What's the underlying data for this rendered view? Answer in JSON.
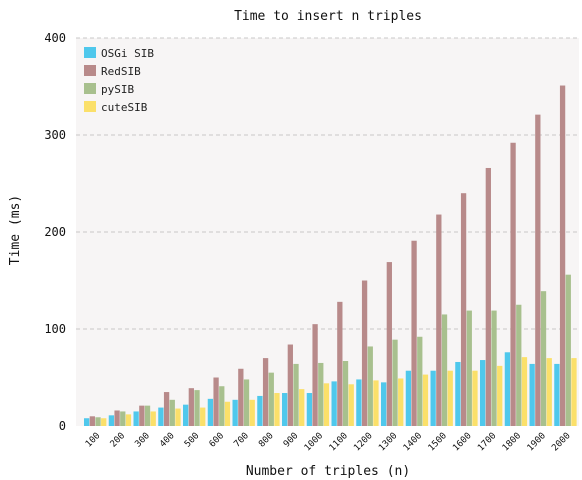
{
  "chart_data": {
    "type": "bar",
    "title": "Time to insert n triples",
    "xlabel": "Number of triples (n)",
    "ylabel": "Time (ms)",
    "ylim": [
      0,
      400
    ],
    "yticks": [
      0,
      100,
      200,
      300,
      400
    ],
    "grid": true,
    "legend_position": "top-left",
    "categories": [
      "100",
      "200",
      "300",
      "400",
      "500",
      "600",
      "700",
      "800",
      "900",
      "1000",
      "1100",
      "1200",
      "1300",
      "1400",
      "1500",
      "1600",
      "1700",
      "1800",
      "1900",
      "2000"
    ],
    "series": [
      {
        "name": "OSGi SIB",
        "color": "#4fc8ec",
        "values": [
          8,
          11,
          15,
          19,
          22,
          28,
          27,
          31,
          34,
          34,
          46,
          48,
          45,
          57,
          57,
          66,
          68,
          76,
          64,
          64
        ]
      },
      {
        "name": "RedSIB",
        "color": "#b88a8a",
        "values": [
          10,
          16,
          21,
          35,
          39,
          50,
          59,
          70,
          84,
          105,
          128,
          150,
          169,
          191,
          218,
          240,
          266,
          292,
          321,
          351
        ]
      },
      {
        "name": "pySIB",
        "color": "#a8c08e",
        "values": [
          9,
          15,
          21,
          27,
          37,
          41,
          48,
          55,
          64,
          65,
          67,
          82,
          89,
          92,
          115,
          119,
          119,
          125,
          139,
          156
        ]
      },
      {
        "name": "cuteSIB",
        "color": "#fbe06a",
        "values": [
          8,
          12,
          15,
          18,
          19,
          25,
          27,
          34,
          38,
          44,
          43,
          47,
          49,
          53,
          57,
          57,
          62,
          71,
          70,
          70
        ]
      }
    ]
  }
}
